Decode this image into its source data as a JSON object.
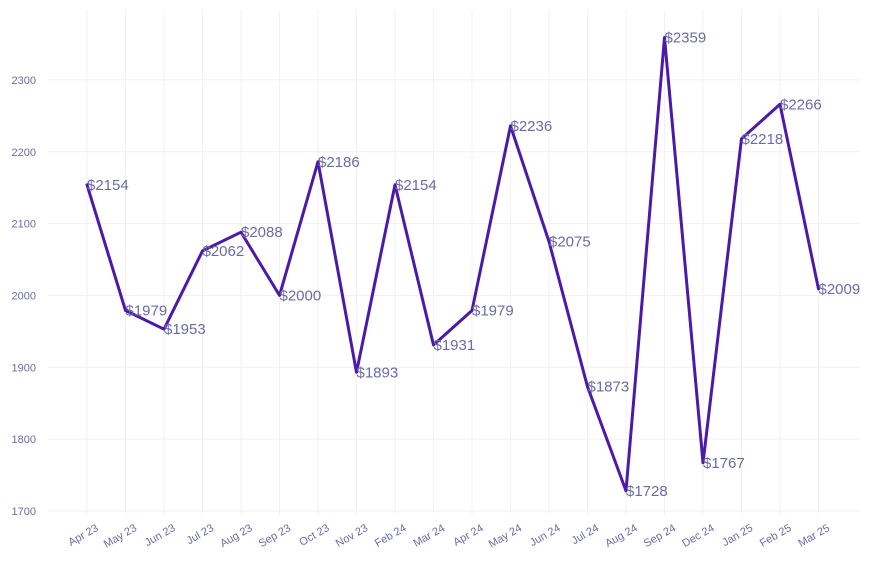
{
  "chart_data": {
    "type": "line",
    "title": "",
    "xlabel": "",
    "ylabel": "",
    "categories": [
      "Apr 23",
      "May 23",
      "Jun 23",
      "Jul 23",
      "Aug 23",
      "Sep 23",
      "Oct 23",
      "Nov 23",
      "Feb 24",
      "Mar 24",
      "Apr 24",
      "May 24",
      "Jun 24",
      "Jul 24",
      "Aug 24",
      "Sep 24",
      "Dec 24",
      "Jan 25",
      "Feb 25",
      "Mar 25"
    ],
    "series": [
      {
        "values": [
          2154,
          1979,
          1953,
          2062,
          2088,
          2000,
          2186,
          1893,
          2154,
          1931,
          1979,
          2236,
          2075,
          1873,
          1728,
          2359,
          1767,
          2218,
          2266,
          2009
        ],
        "labels": [
          "$2154",
          "$1979",
          "$1953",
          "$2062",
          "$2088",
          "$2000",
          "$2186",
          "$1893",
          "$2154",
          "$1931",
          "$1979",
          "$2236",
          "$2075",
          "$1873",
          "$1728",
          "$2359",
          "$1767",
          "$2218",
          "$2266",
          "$2009"
        ]
      }
    ],
    "y_ticks": [
      "1700",
      "1800",
      "1900",
      "2000",
      "2100",
      "2200",
      "2300"
    ],
    "ylim": [
      1700,
      2360
    ],
    "grid": true,
    "colors": {
      "line": "#4b1aa8",
      "text": "#6b6ba8",
      "grid": "#f1f1f6"
    }
  }
}
